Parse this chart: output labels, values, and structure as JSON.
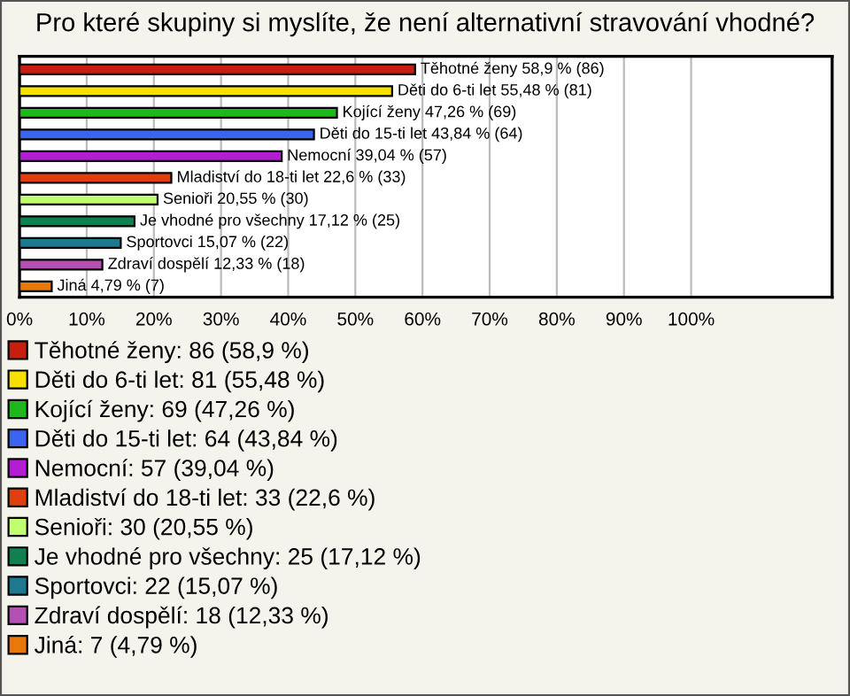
{
  "chart_data": {
    "type": "bar",
    "orientation": "horizontal",
    "title": "Pro které skupiny si myslíte, že není alternativní stravování vhodné?",
    "categories": [
      null,
      null,
      null,
      null,
      null,
      null,
      null,
      null,
      null,
      null,
      null
    ],
    "series": [
      {
        "name": "Těhotné ženy: 86 (58,9 %)",
        "color": "#c81e0e",
        "values": [
          58.9,
          null,
          null,
          null,
          null,
          null,
          null,
          null,
          null,
          null,
          null
        ],
        "value_labels": [
          "Těhotné ženy 58,9 % (86)",
          null,
          null,
          null,
          null,
          null,
          null,
          null,
          null,
          null,
          null
        ]
      },
      {
        "name": "Děti do 6-ti let: 81 (55,48 %)",
        "color": "#f5e000",
        "values": [
          null,
          55.48,
          null,
          null,
          null,
          null,
          null,
          null,
          null,
          null,
          null
        ],
        "value_labels": [
          null,
          "Děti do 6-ti let 55,48 % (81)",
          null,
          null,
          null,
          null,
          null,
          null,
          null,
          null,
          null
        ]
      },
      {
        "name": "Kojící ženy: 69 (47,26 %)",
        "color": "#1cb81c",
        "values": [
          null,
          null,
          47.26,
          null,
          null,
          null,
          null,
          null,
          null,
          null,
          null
        ],
        "value_labels": [
          null,
          null,
          "Kojící ženy 47,26 % (69)",
          null,
          null,
          null,
          null,
          null,
          null,
          null,
          null
        ]
      },
      {
        "name": "Děti do 15-ti let: 64 (43,84 %)",
        "color": "#3c64f0",
        "values": [
          null,
          null,
          null,
          43.84,
          null,
          null,
          null,
          null,
          null,
          null,
          null
        ],
        "value_labels": [
          null,
          null,
          null,
          "Děti do 15-ti let 43,84 % (64)",
          null,
          null,
          null,
          null,
          null,
          null,
          null
        ]
      },
      {
        "name": "Nemocní: 57 (39,04 %)",
        "color": "#b41ed2",
        "values": [
          null,
          null,
          null,
          null,
          39.04,
          null,
          null,
          null,
          null,
          null,
          null
        ],
        "value_labels": [
          null,
          null,
          null,
          null,
          "Nemocní 39,04 % (57)",
          null,
          null,
          null,
          null,
          null,
          null
        ]
      },
      {
        "name": "Mladiství do 18-ti let: 33 (22,6 %)",
        "color": "#e04010",
        "values": [
          null,
          null,
          null,
          null,
          null,
          22.6,
          null,
          null,
          null,
          null,
          null
        ],
        "value_labels": [
          null,
          null,
          null,
          null,
          null,
          "Mladiství do 18-ti let 22,6 % (33)",
          null,
          null,
          null,
          null,
          null
        ]
      },
      {
        "name": "Senioři: 30 (20,55 %)",
        "color": "#c0ff70",
        "values": [
          null,
          null,
          null,
          null,
          null,
          null,
          20.55,
          null,
          null,
          null,
          null
        ],
        "value_labels": [
          null,
          null,
          null,
          null,
          null,
          null,
          "Senioři 20,55 % (30)",
          null,
          null,
          null,
          null
        ]
      },
      {
        "name": "Je vhodné pro všechny: 25 (17,12 %)",
        "color": "#108050",
        "values": [
          null,
          null,
          null,
          null,
          null,
          null,
          null,
          17.12,
          null,
          null,
          null
        ],
        "value_labels": [
          null,
          null,
          null,
          null,
          null,
          null,
          null,
          "Je vhodné pro všechny 17,12 % (25)",
          null,
          null,
          null
        ]
      },
      {
        "name": "Sportovci: 22 (15,07 %)",
        "color": "#1e7890",
        "values": [
          null,
          null,
          null,
          null,
          null,
          null,
          null,
          null,
          15.07,
          null,
          null
        ],
        "value_labels": [
          null,
          null,
          null,
          null,
          null,
          null,
          null,
          null,
          "Sportovci 15,07 % (22)",
          null,
          null
        ]
      },
      {
        "name": "Zdraví dospělí: 18 (12,33 %)",
        "color": "#b450b4",
        "values": [
          null,
          null,
          null,
          null,
          null,
          null,
          null,
          null,
          null,
          12.33,
          null
        ],
        "value_labels": [
          null,
          null,
          null,
          null,
          null,
          null,
          null,
          null,
          null,
          "Zdraví dospělí 12,33 % (18)",
          null
        ]
      },
      {
        "name": "Jiná: 7 (4,79 %)",
        "color": "#e87808",
        "values": [
          null,
          null,
          null,
          null,
          null,
          null,
          null,
          null,
          null,
          null,
          4.79
        ],
        "value_labels": [
          null,
          null,
          null,
          null,
          null,
          null,
          null,
          null,
          null,
          null,
          "Jiná 4,79 % (7)"
        ]
      }
    ],
    "xlim": [
      0,
      121
    ],
    "xticks": [
      {
        "value": 0,
        "label": "0%"
      },
      {
        "value": 10,
        "label": "10%"
      },
      {
        "value": 20,
        "label": "20%"
      },
      {
        "value": 30,
        "label": "30%"
      },
      {
        "value": 40,
        "label": "40%"
      },
      {
        "value": 50,
        "label": "50%"
      },
      {
        "value": 60,
        "label": "60%"
      },
      {
        "value": 70,
        "label": "70%"
      },
      {
        "value": 80,
        "label": "80%"
      },
      {
        "value": 90,
        "label": "90%"
      },
      {
        "value": 100,
        "label": "100%"
      }
    ],
    "tick_labels": "x",
    "grid": "x",
    "legend": "bottom"
  }
}
